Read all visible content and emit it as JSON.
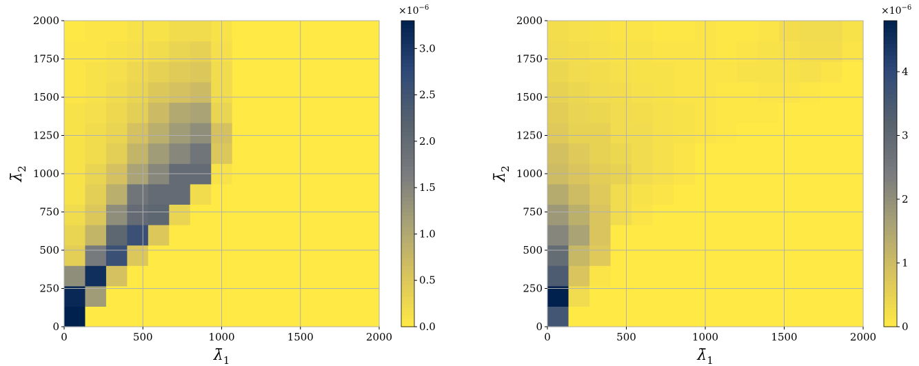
{
  "chart_data": [
    {
      "type": "heatmap",
      "xlabel_base": "λ̄",
      "xlabel_sub": "1",
      "ylabel_base": "λ̄",
      "ylabel_sub": "2",
      "xlim": [
        0,
        2000
      ],
      "ylim": [
        0,
        2000
      ],
      "xticks": [
        0,
        500,
        1000,
        1500,
        2000
      ],
      "yticks": [
        0,
        250,
        500,
        750,
        1000,
        1250,
        1500,
        1750,
        2000
      ],
      "grid": true,
      "cell_size": 133.33,
      "colormap": [
        "#ffe945",
        "#d9c45d",
        "#a9a375",
        "#7a7c7f",
        "#57626e",
        "#2f4a78",
        "#00204d"
      ],
      "colorbar": {
        "range": [
          0,
          3.3
        ],
        "ticks": [
          0.0,
          0.5,
          1.0,
          1.5,
          2.0,
          2.5,
          3.0
        ],
        "tick_labels": [
          "0.0",
          "0.5",
          "1.0",
          "1.5",
          "2.0",
          "2.5",
          "3.0"
        ],
        "multiplier_base": "×10",
        "multiplier_exp": "−6"
      },
      "values": [
        [
          3.3,
          0.0,
          0.0,
          0.0,
          0.0,
          0.0,
          0.0,
          0.0,
          0.0,
          0.0,
          0.0,
          0.0,
          0.0,
          0.0,
          0.0
        ],
        [
          3.2,
          1.2,
          0.0,
          0.0,
          0.0,
          0.0,
          0.0,
          0.0,
          0.0,
          0.0,
          0.0,
          0.0,
          0.0,
          0.0,
          0.0
        ],
        [
          1.4,
          3.1,
          0.6,
          0.0,
          0.0,
          0.0,
          0.0,
          0.0,
          0.0,
          0.0,
          0.0,
          0.0,
          0.0,
          0.0,
          0.0
        ],
        [
          0.4,
          1.7,
          2.6,
          0.5,
          0.0,
          0.0,
          0.0,
          0.0,
          0.0,
          0.0,
          0.0,
          0.0,
          0.0,
          0.0,
          0.0
        ],
        [
          0.3,
          0.8,
          2.1,
          2.6,
          0.5,
          0.0,
          0.0,
          0.0,
          0.0,
          0.0,
          0.0,
          0.0,
          0.0,
          0.0,
          0.0
        ],
        [
          0.2,
          0.5,
          1.4,
          2.0,
          2.1,
          0.3,
          0.0,
          0.0,
          0.0,
          0.0,
          0.0,
          0.0,
          0.0,
          0.0,
          0.0
        ],
        [
          0.1,
          0.4,
          0.9,
          1.8,
          2.0,
          2.0,
          0.2,
          0.0,
          0.0,
          0.0,
          0.0,
          0.0,
          0.0,
          0.0,
          0.0
        ],
        [
          0.1,
          0.3,
          0.6,
          1.1,
          1.5,
          2.0,
          2.0,
          0.1,
          0.0,
          0.0,
          0.0,
          0.0,
          0.0,
          0.0,
          0.0
        ],
        [
          0.1,
          0.2,
          0.4,
          0.8,
          1.2,
          1.5,
          1.8,
          0.5,
          0.0,
          0.0,
          0.0,
          0.0,
          0.0,
          0.0,
          0.0
        ],
        [
          0.1,
          0.2,
          0.3,
          0.6,
          0.9,
          1.2,
          1.4,
          0.6,
          0.0,
          0.0,
          0.0,
          0.0,
          0.0,
          0.0,
          0.0
        ],
        [
          0.1,
          0.15,
          0.25,
          0.4,
          0.7,
          1.0,
          1.1,
          0.3,
          0.0,
          0.0,
          0.0,
          0.0,
          0.0,
          0.0,
          0.0
        ],
        [
          0.05,
          0.1,
          0.2,
          0.3,
          0.5,
          0.6,
          0.7,
          0.2,
          0.0,
          0.0,
          0.0,
          0.0,
          0.0,
          0.0,
          0.0
        ],
        [
          0.05,
          0.1,
          0.15,
          0.25,
          0.35,
          0.45,
          0.5,
          0.2,
          0.0,
          0.0,
          0.0,
          0.0,
          0.0,
          0.0,
          0.0
        ],
        [
          0.05,
          0.05,
          0.1,
          0.15,
          0.2,
          0.3,
          0.35,
          0.15,
          0.0,
          0.0,
          0.0,
          0.0,
          0.0,
          0.0,
          0.0
        ],
        [
          0.02,
          0.05,
          0.05,
          0.1,
          0.1,
          0.2,
          0.2,
          0.1,
          0.0,
          0.0,
          0.0,
          0.0,
          0.0,
          0.0,
          0.0
        ]
      ]
    },
    {
      "type": "heatmap",
      "xlabel_base": "λ̄",
      "xlabel_sub": "1",
      "ylabel_base": "λ̄",
      "ylabel_sub": "2",
      "xlim": [
        0,
        2000
      ],
      "ylim": [
        0,
        2000
      ],
      "xticks": [
        0,
        500,
        1000,
        1500,
        2000
      ],
      "yticks": [
        0,
        250,
        500,
        750,
        1000,
        1250,
        1500,
        1750,
        2000
      ],
      "grid": true,
      "cell_size": 133.33,
      "colormap": [
        "#ffe945",
        "#d9c45d",
        "#a9a375",
        "#7a7c7f",
        "#57626e",
        "#2f4a78",
        "#00204d"
      ],
      "colorbar": {
        "range": [
          0,
          4.8
        ],
        "ticks": [
          0,
          1,
          2,
          3,
          4
        ],
        "tick_labels": [
          "0",
          "1",
          "2",
          "3",
          "4"
        ],
        "multiplier_base": "×10",
        "multiplier_exp": "−6"
      },
      "values": [
        [
          3.6,
          0.0,
          0.0,
          0.0,
          0.0,
          0.0,
          0.0,
          0.0,
          0.0,
          0.0,
          0.0,
          0.0,
          0.0,
          0.0,
          0.0
        ],
        [
          4.8,
          0.3,
          0.0,
          0.0,
          0.0,
          0.0,
          0.0,
          0.0,
          0.0,
          0.0,
          0.0,
          0.0,
          0.0,
          0.0,
          0.0
        ],
        [
          3.4,
          0.8,
          0.1,
          0.0,
          0.0,
          0.0,
          0.0,
          0.0,
          0.0,
          0.0,
          0.0,
          0.0,
          0.0,
          0.0,
          0.0
        ],
        [
          2.9,
          1.1,
          0.7,
          0.0,
          0.0,
          0.0,
          0.0,
          0.0,
          0.0,
          0.0,
          0.0,
          0.0,
          0.0,
          0.0,
          0.0
        ],
        [
          2.2,
          1.6,
          0.8,
          0.0,
          0.0,
          0.0,
          0.0,
          0.0,
          0.0,
          0.0,
          0.0,
          0.0,
          0.0,
          0.0,
          0.0
        ],
        [
          1.8,
          1.3,
          0.8,
          0.3,
          0.1,
          0.0,
          0.0,
          0.0,
          0.0,
          0.0,
          0.0,
          0.0,
          0.0,
          0.0,
          0.0
        ],
        [
          1.4,
          1.0,
          0.7,
          0.3,
          0.15,
          0.1,
          0.0,
          0.0,
          0.0,
          0.0,
          0.0,
          0.0,
          0.0,
          0.0,
          0.0
        ],
        [
          1.0,
          0.8,
          0.6,
          0.5,
          0.3,
          0.2,
          0.1,
          0.0,
          0.0,
          0.0,
          0.0,
          0.0,
          0.0,
          0.0,
          0.0
        ],
        [
          0.9,
          0.7,
          0.5,
          0.4,
          0.3,
          0.2,
          0.1,
          0.0,
          0.0,
          0.0,
          0.0,
          0.0,
          0.0,
          0.0,
          0.0
        ],
        [
          0.7,
          0.5,
          0.5,
          0.3,
          0.3,
          0.2,
          0.15,
          0.1,
          0.05,
          0.0,
          0.0,
          0.0,
          0.0,
          0.0,
          0.0
        ],
        [
          0.6,
          0.45,
          0.4,
          0.3,
          0.25,
          0.2,
          0.15,
          0.1,
          0.05,
          0.05,
          0.05,
          0.0,
          0.0,
          0.0,
          0.0
        ],
        [
          0.5,
          0.4,
          0.3,
          0.25,
          0.2,
          0.15,
          0.1,
          0.1,
          0.05,
          0.05,
          0.1,
          0.1,
          0.05,
          0.0,
          0.0
        ],
        [
          0.4,
          0.3,
          0.25,
          0.2,
          0.15,
          0.15,
          0.1,
          0.1,
          0.1,
          0.15,
          0.15,
          0.15,
          0.2,
          0.1,
          0.0
        ],
        [
          0.3,
          0.25,
          0.2,
          0.15,
          0.15,
          0.1,
          0.1,
          0.1,
          0.05,
          0.1,
          0.15,
          0.2,
          0.25,
          0.25,
          0.1
        ],
        [
          0.25,
          0.2,
          0.15,
          0.1,
          0.1,
          0.05,
          0.05,
          0.1,
          0.05,
          0.05,
          0.1,
          0.25,
          0.3,
          0.3,
          0.15
        ]
      ]
    }
  ]
}
